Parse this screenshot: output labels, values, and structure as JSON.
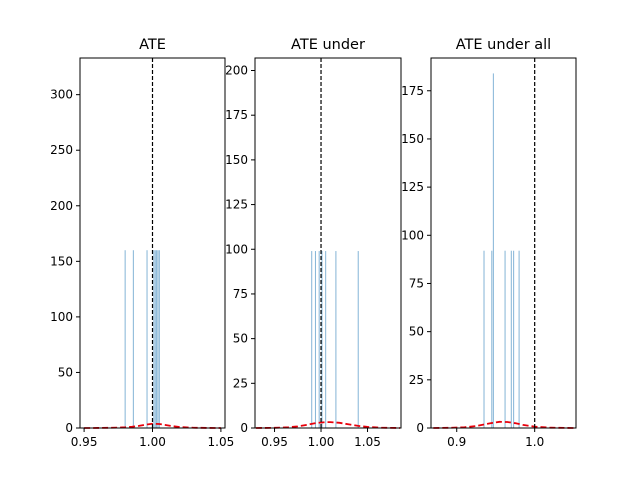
{
  "chart_data": [
    {
      "type": "bar",
      "title": "ATE",
      "xlim": [
        0.947,
        1.053
      ],
      "ylim": [
        0,
        333
      ],
      "xticks": [
        0.95,
        1.0,
        1.05
      ],
      "xtick_labels": [
        "0.95",
        "1.00",
        "1.05"
      ],
      "yticks": [
        0,
        50,
        100,
        150,
        200,
        250,
        300
      ],
      "ytick_labels": [
        "0",
        "50",
        "100",
        "150",
        "200",
        "250",
        "300"
      ],
      "bar_width": 0.0007,
      "bars": [
        {
          "x": 0.98,
          "y": 160
        },
        {
          "x": 0.986,
          "y": 160
        },
        {
          "x": 0.996,
          "y": 160
        },
        {
          "x": 1.001,
          "y": 160
        },
        {
          "x": 1.002,
          "y": 160
        },
        {
          "x": 1.003,
          "y": 160
        },
        {
          "x": 1.004,
          "y": 160
        },
        {
          "x": 1.005,
          "y": 160
        }
      ],
      "vline_x": 1.0,
      "density_curve": {
        "x": [
          0.95,
          0.96,
          0.97,
          0.98,
          0.985,
          0.99,
          0.995,
          1.0,
          1.005,
          1.01,
          1.015,
          1.02,
          1.03,
          1.04,
          1.05
        ],
        "y": [
          0.0,
          0.05,
          0.2,
          0.6,
          1.1,
          1.9,
          3.0,
          3.8,
          3.6,
          2.6,
          1.6,
          0.9,
          0.25,
          0.05,
          0.0
        ]
      }
    },
    {
      "type": "bar",
      "title": "ATE under",
      "xlim": [
        0.929,
        1.086
      ],
      "ylim": [
        0,
        207
      ],
      "xticks": [
        0.95,
        1.0,
        1.05
      ],
      "xtick_labels": [
        "0.95",
        "1.00",
        "1.05"
      ],
      "yticks": [
        0,
        25,
        50,
        75,
        100,
        125,
        150,
        175,
        200
      ],
      "ytick_labels": [
        "0",
        "25",
        "50",
        "75",
        "100",
        "125",
        "150",
        "175",
        "200"
      ],
      "bar_width": 0.0009,
      "bars": [
        {
          "x": 0.99,
          "y": 99
        },
        {
          "x": 0.994,
          "y": 99
        },
        {
          "x": 0.998,
          "y": 99
        },
        {
          "x": 1.001,
          "y": 99
        },
        {
          "x": 1.005,
          "y": 99
        },
        {
          "x": 1.016,
          "y": 99
        },
        {
          "x": 1.04,
          "y": 99
        }
      ],
      "vline_x": 1.0,
      "density_curve": {
        "x": [
          0.93,
          0.95,
          0.965,
          0.975,
          0.985,
          0.995,
          1.005,
          1.01,
          1.02,
          1.03,
          1.04,
          1.05,
          1.065,
          1.085
        ],
        "y": [
          0.0,
          0.1,
          0.4,
          0.9,
          1.8,
          2.8,
          3.3,
          3.3,
          2.9,
          2.0,
          1.2,
          0.6,
          0.15,
          0.0
        ]
      }
    },
    {
      "type": "bar",
      "title": "ATE under all",
      "xlim": [
        0.867,
        1.053
      ],
      "ylim": [
        0,
        192
      ],
      "xticks": [
        0.9,
        1.0
      ],
      "xtick_labels": [
        "0.9",
        "1.0"
      ],
      "yticks": [
        0,
        25,
        50,
        75,
        100,
        125,
        150,
        175
      ],
      "ytick_labels": [
        "0",
        "25",
        "50",
        "75",
        "100",
        "125",
        "150",
        "175"
      ],
      "bar_width": 0.0011,
      "bars": [
        {
          "x": 0.935,
          "y": 92
        },
        {
          "x": 0.945,
          "y": 92
        },
        {
          "x": 0.947,
          "y": 184
        },
        {
          "x": 0.962,
          "y": 92
        },
        {
          "x": 0.97,
          "y": 92
        },
        {
          "x": 0.973,
          "y": 92
        },
        {
          "x": 0.98,
          "y": 92
        }
      ],
      "vline_x": 1.0,
      "density_curve": {
        "x": [
          0.87,
          0.89,
          0.91,
          0.925,
          0.935,
          0.945,
          0.955,
          0.965,
          0.975,
          0.985,
          1.0,
          1.02,
          1.05
        ],
        "y": [
          0.0,
          0.1,
          0.4,
          1.0,
          1.8,
          2.6,
          3.2,
          3.1,
          2.5,
          1.6,
          0.7,
          0.15,
          0.0
        ]
      }
    }
  ]
}
